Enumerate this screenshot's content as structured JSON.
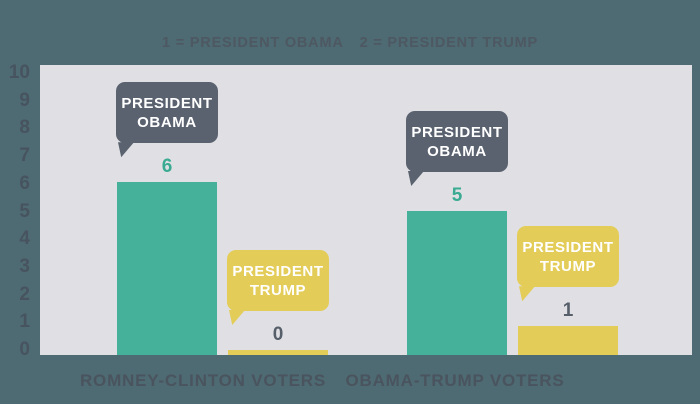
{
  "page": {
    "background": "#4e6a72",
    "plot_background": "#e0e0e4"
  },
  "chart_data": {
    "type": "bar",
    "title": "",
    "legend": [
      "1 = PRESIDENT OBAMA",
      "2 = PRESIDENT TRUMP"
    ],
    "legend_position": "top",
    "categories": [
      "ROMNEY-CLINTON VOTERS",
      "OBAMA-TRUMP VOTERS"
    ],
    "series": [
      {
        "key": "obama",
        "name": "PRESIDENT OBAMA",
        "bubble_lines": [
          "PRESIDENT",
          "OBAMA"
        ],
        "bar_color": "#45b19a",
        "bubble_color": "#5a6270",
        "value_color": "#3aab92",
        "values": [
          6,
          5
        ]
      },
      {
        "key": "trump",
        "name": "PRESIDENT TRUMP",
        "bubble_lines": [
          "PRESIDENT",
          "TRUMP"
        ],
        "bar_color": "#e3cc58",
        "bubble_color": "#e3cc58",
        "value_color": "#565f69",
        "values": [
          0,
          1
        ]
      }
    ],
    "ylim": [
      0,
      10
    ],
    "yticks": [
      10,
      9,
      8,
      7,
      6,
      5,
      4,
      3,
      2,
      1,
      0
    ],
    "grid": false,
    "ylabel": "",
    "xlabel": "",
    "axis_text_color": "#475460",
    "category_text_color": "#4a545f",
    "bubble_text_color": "#ffffff"
  }
}
